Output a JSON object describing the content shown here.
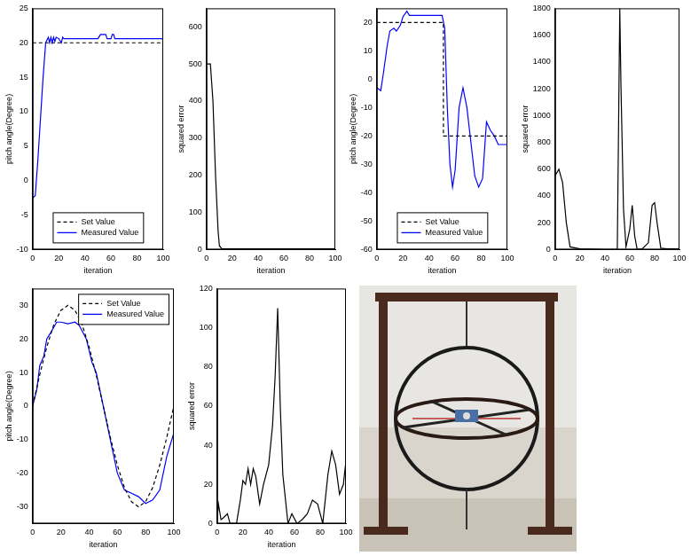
{
  "chart_data": [
    {
      "type": "line",
      "x_label": "iteration",
      "y_label": "pitch angle(Degree)",
      "xlim": [
        0,
        100
      ],
      "xticks": [
        0,
        20,
        40,
        60,
        80,
        100
      ],
      "ylim": [
        -10,
        25
      ],
      "yticks": [
        -10,
        -5,
        0,
        5,
        10,
        15,
        20,
        25
      ],
      "grid": false,
      "legend": "lower center",
      "series": [
        {
          "name": "Set Value",
          "color": "#000000",
          "line_style": "dashed",
          "x": [
            0,
            100
          ],
          "values": [
            20,
            20
          ]
        },
        {
          "name": "Measured Value",
          "color": "#0000ff",
          "line_style": "solid",
          "x": [
            0,
            2,
            4,
            6,
            8,
            10,
            12,
            13,
            14,
            15,
            16,
            17,
            18,
            20,
            22,
            23,
            24,
            25,
            30,
            40,
            50,
            52,
            54,
            56,
            57,
            58,
            60,
            61,
            62,
            63,
            70,
            80,
            90,
            100
          ],
          "values": [
            -2.5,
            -2.2,
            3,
            9,
            15,
            20,
            20.8,
            20,
            20.8,
            20,
            20.8,
            20.2,
            20.8,
            20.6,
            20,
            20.8,
            20.6,
            20.6,
            20.6,
            20.6,
            20.6,
            21.2,
            21.2,
            21.2,
            20.6,
            20.6,
            20.6,
            21.2,
            21.2,
            20.6,
            20.6,
            20.6,
            20.6,
            20.6
          ]
        }
      ]
    },
    {
      "type": "line",
      "x_label": "iteration",
      "y_label": "squared error",
      "xlim": [
        0,
        100
      ],
      "xticks": [
        0,
        20,
        40,
        60,
        80,
        100
      ],
      "ylim": [
        0,
        650
      ],
      "yticks": [
        0,
        100,
        200,
        300,
        400,
        500,
        600
      ],
      "grid": false,
      "series": [
        {
          "color": "#000000",
          "line_style": "solid",
          "x": [
            0,
            3,
            5,
            7,
            9,
            10,
            12,
            20,
            40,
            60,
            80,
            100
          ],
          "values": [
            500,
            500,
            400,
            200,
            50,
            10,
            2,
            2,
            2,
            2,
            2,
            2
          ]
        }
      ]
    },
    {
      "type": "line",
      "x_label": "iteration",
      "y_label": "pitch angle(Degree)",
      "xlim": [
        0,
        100
      ],
      "xticks": [
        0,
        20,
        40,
        60,
        80,
        100
      ],
      "ylim": [
        -60,
        25
      ],
      "yticks": [
        -60,
        -50,
        -40,
        -30,
        -20,
        -10,
        0,
        10,
        20
      ],
      "grid": false,
      "legend": "lower center",
      "series": [
        {
          "name": "Set Value",
          "color": "#000000",
          "line_style": "dashed",
          "x": [
            0,
            51,
            51,
            100
          ],
          "values": [
            20,
            20,
            -20,
            -20
          ]
        },
        {
          "name": "Measured Value",
          "color": "#0000ff",
          "line_style": "solid",
          "x": [
            0,
            3,
            5,
            8,
            10,
            13,
            15,
            18,
            20,
            23,
            25,
            30,
            40,
            50,
            52,
            54,
            56,
            58,
            60,
            63,
            66,
            69,
            72,
            75,
            78,
            81,
            84,
            87,
            90,
            93,
            100
          ],
          "values": [
            -3,
            -4,
            2,
            12,
            17,
            18,
            17,
            19,
            22,
            24,
            22.5,
            22.5,
            22.5,
            22.5,
            18,
            -10,
            -30,
            -38,
            -32,
            -10,
            -3,
            -10,
            -22,
            -34,
            -38,
            -35,
            -15,
            -18,
            -20,
            -23,
            -23
          ]
        }
      ]
    },
    {
      "type": "line",
      "x_label": "iteration",
      "y_label": "squared error",
      "xlim": [
        0,
        100
      ],
      "xticks": [
        0,
        20,
        40,
        60,
        80,
        100
      ],
      "ylim": [
        0,
        1800
      ],
      "yticks": [
        0,
        200,
        400,
        600,
        800,
        1000,
        1200,
        1400,
        1600,
        1800
      ],
      "grid": false,
      "series": [
        {
          "color": "#000000",
          "line_style": "solid",
          "x": [
            0,
            3,
            6,
            9,
            12,
            20,
            40,
            50,
            51,
            52,
            53,
            55,
            57,
            60,
            62,
            64,
            66,
            70,
            75,
            78,
            80,
            82,
            85,
            90,
            100
          ],
          "values": [
            550,
            600,
            500,
            200,
            20,
            5,
            0,
            0,
            900,
            1800,
            1200,
            300,
            20,
            150,
            330,
            100,
            0,
            5,
            50,
            330,
            350,
            200,
            10,
            5,
            5
          ]
        }
      ]
    },
    {
      "type": "line",
      "x_label": "iteration",
      "y_label": "pitch angle(Degree)",
      "xlim": [
        0,
        100
      ],
      "xticks": [
        0,
        20,
        40,
        60,
        80,
        100
      ],
      "ylim": [
        -35,
        35
      ],
      "yticks": [
        -30,
        -20,
        -10,
        0,
        10,
        20,
        30
      ],
      "grid": false,
      "legend": "upper right",
      "series": [
        {
          "name": "Set Value",
          "color": "#000000",
          "line_style": "dashed",
          "x": [
            0,
            5,
            10,
            15,
            20,
            25,
            30,
            35,
            40,
            45,
            50,
            55,
            60,
            65,
            70,
            75,
            80,
            85,
            90,
            95,
            100
          ],
          "values": [
            0,
            9.3,
            17.6,
            24.3,
            28.5,
            30,
            28.5,
            24.3,
            17.6,
            9.3,
            0,
            -9.3,
            -17.6,
            -24.3,
            -28.5,
            -30,
            -28.5,
            -24.3,
            -17.6,
            -9.3,
            0
          ]
        },
        {
          "name": "Measured Value",
          "color": "#0000ff",
          "line_style": "solid",
          "x": [
            0,
            3,
            5,
            8,
            10,
            13,
            17,
            20,
            25,
            30,
            33,
            38,
            42,
            45,
            50,
            55,
            60,
            65,
            70,
            75,
            80,
            85,
            90,
            95,
            100
          ],
          "values": [
            0,
            5,
            12,
            15,
            20,
            22,
            25,
            25,
            24.5,
            25,
            24,
            20,
            13,
            10,
            0,
            -10,
            -20,
            -25,
            -26,
            -27,
            -29,
            -28,
            -25,
            -15,
            -8
          ]
        }
      ]
    },
    {
      "type": "line",
      "x_label": "iteration",
      "y_label": "squared error",
      "xlim": [
        0,
        100
      ],
      "xticks": [
        0,
        20,
        40,
        60,
        80,
        100
      ],
      "ylim": [
        0,
        120
      ],
      "yticks": [
        0,
        20,
        40,
        60,
        80,
        100,
        120
      ],
      "grid": false,
      "series": [
        {
          "color": "#000000",
          "line_style": "solid",
          "x": [
            0,
            1,
            3,
            5,
            8,
            10,
            12,
            15,
            18,
            20,
            22,
            24,
            26,
            28,
            30,
            33,
            36,
            40,
            43,
            45,
            47,
            49,
            51,
            55,
            58,
            62,
            66,
            70,
            74,
            78,
            82,
            86,
            89,
            92,
            95,
            98,
            100
          ],
          "values": [
            2,
            10,
            2,
            3,
            5,
            0,
            0,
            0,
            12,
            22,
            20,
            28,
            20,
            28,
            24,
            10,
            20,
            30,
            50,
            75,
            110,
            60,
            25,
            0,
            5,
            0,
            2,
            5,
            12,
            10,
            0,
            25,
            37,
            30,
            15,
            20,
            32
          ]
        }
      ]
    }
  ]
}
